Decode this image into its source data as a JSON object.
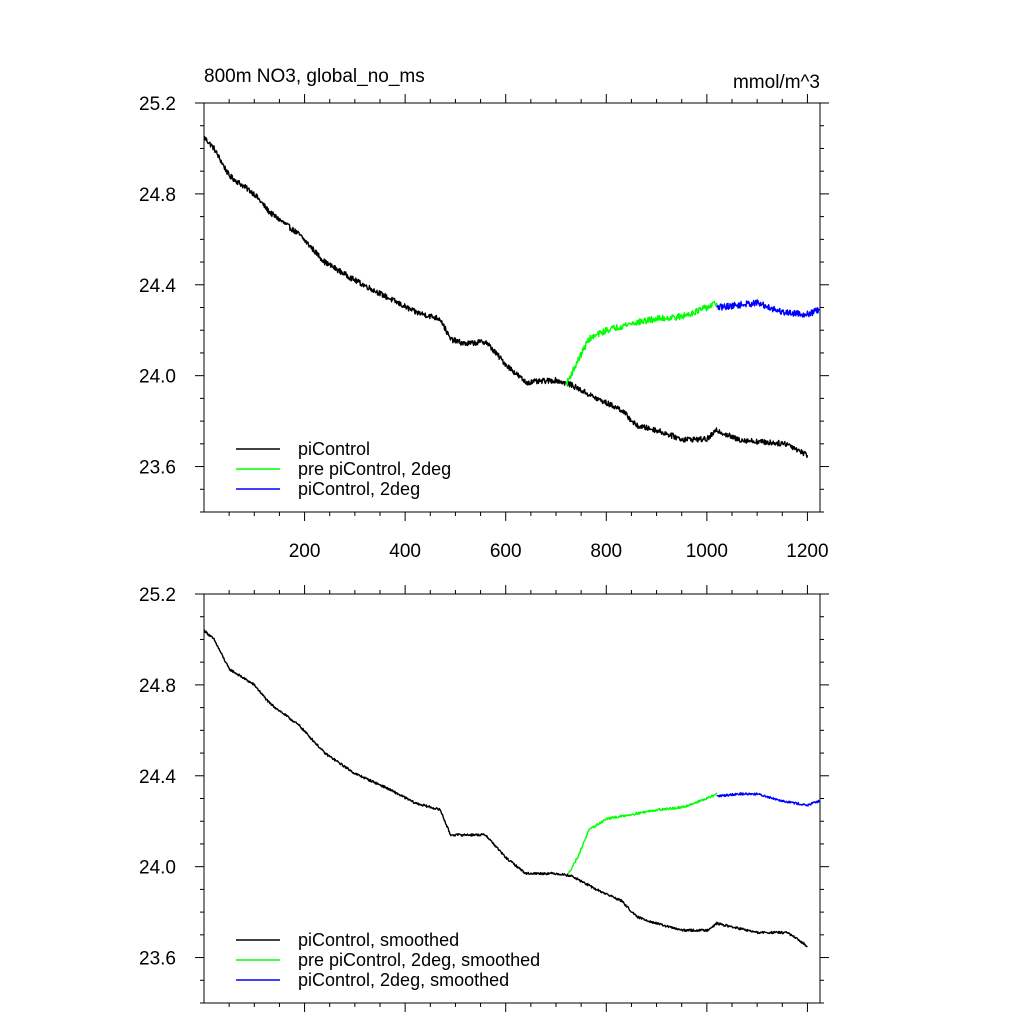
{
  "header": {
    "title": "800m NO3, global_no_ms",
    "units": "mmol/m^3"
  },
  "chart_data": [
    {
      "type": "line",
      "panel": "top",
      "title": "800m NO3, global_no_ms",
      "units_label": "mmol/m^3",
      "xlabel": "",
      "ylabel": "",
      "xlim": [
        0,
        1225
      ],
      "ylim": [
        23.4,
        25.2
      ],
      "x_ticks": [
        200,
        400,
        600,
        800,
        1000,
        1200
      ],
      "x_tick_labels": [
        "200",
        "400",
        "600",
        "800",
        "1000",
        "1200"
      ],
      "y_ticks": [
        23.6,
        24.0,
        24.4,
        24.8,
        25.2
      ],
      "y_tick_labels": [
        "23.6",
        "24.0",
        "24.4",
        "24.8",
        "25.2"
      ],
      "grid": false,
      "legend_position": "bottom-left",
      "series": [
        {
          "name": "piControl",
          "color": "#000000",
          "noise": 0.012,
          "points": [
            [
              0,
              25.05
            ],
            [
              20,
              25.0
            ],
            [
              50,
              24.88
            ],
            [
              100,
              24.8
            ],
            [
              130,
              24.72
            ],
            [
              190,
              24.62
            ],
            [
              240,
              24.5
            ],
            [
              300,
              24.42
            ],
            [
              360,
              24.35
            ],
            [
              420,
              24.28
            ],
            [
              470,
              24.25
            ],
            [
              490,
              24.16
            ],
            [
              520,
              24.14
            ],
            [
              560,
              24.15
            ],
            [
              600,
              24.05
            ],
            [
              640,
              23.97
            ],
            [
              700,
              23.98
            ],
            [
              730,
              23.96
            ],
            [
              780,
              23.9
            ],
            [
              830,
              23.85
            ],
            [
              860,
              23.78
            ],
            [
              900,
              23.76
            ],
            [
              950,
              23.72
            ],
            [
              1000,
              23.72
            ],
            [
              1020,
              23.76
            ],
            [
              1060,
              23.72
            ],
            [
              1100,
              23.71
            ],
            [
              1160,
              23.7
            ],
            [
              1200,
              23.65
            ]
          ]
        },
        {
          "name": "pre piControl, 2deg",
          "color": "#00ff00",
          "noise": 0.014,
          "points": [
            [
              720,
              23.96
            ],
            [
              740,
              24.05
            ],
            [
              765,
              24.16
            ],
            [
              800,
              24.2
            ],
            [
              850,
              24.23
            ],
            [
              900,
              24.25
            ],
            [
              950,
              24.26
            ],
            [
              1000,
              24.3
            ],
            [
              1020,
              24.32
            ]
          ]
        },
        {
          "name": "piControl, 2deg",
          "color": "#0000ff",
          "noise": 0.014,
          "points": [
            [
              1020,
              24.3
            ],
            [
              1060,
              24.31
            ],
            [
              1100,
              24.32
            ],
            [
              1150,
              24.28
            ],
            [
              1200,
              24.27
            ],
            [
              1225,
              24.29
            ]
          ]
        }
      ]
    },
    {
      "type": "line",
      "panel": "bottom",
      "title": "",
      "xlabel": "",
      "ylabel": "",
      "xlim": [
        0,
        1225
      ],
      "ylim": [
        23.4,
        25.2
      ],
      "x_ticks": [
        200,
        400,
        600,
        800,
        1000,
        1200
      ],
      "y_ticks": [
        23.6,
        24.0,
        24.4,
        24.8,
        25.2
      ],
      "y_tick_labels": [
        "23.6",
        "24.0",
        "24.4",
        "24.8",
        "25.2"
      ],
      "grid": false,
      "legend_position": "bottom-left",
      "series": [
        {
          "name": "piControl, smoothed",
          "color": "#000000",
          "noise": 0.005,
          "points": [
            [
              0,
              25.04
            ],
            [
              20,
              25.0
            ],
            [
              50,
              24.87
            ],
            [
              100,
              24.8
            ],
            [
              130,
              24.72
            ],
            [
              190,
              24.62
            ],
            [
              240,
              24.5
            ],
            [
              300,
              24.41
            ],
            [
              360,
              24.35
            ],
            [
              420,
              24.28
            ],
            [
              470,
              24.25
            ],
            [
              490,
              24.14
            ],
            [
              520,
              24.14
            ],
            [
              560,
              24.14
            ],
            [
              600,
              24.04
            ],
            [
              640,
              23.97
            ],
            [
              700,
              23.97
            ],
            [
              730,
              23.96
            ],
            [
              780,
              23.9
            ],
            [
              830,
              23.85
            ],
            [
              860,
              23.78
            ],
            [
              900,
              23.75
            ],
            [
              950,
              23.72
            ],
            [
              1000,
              23.72
            ],
            [
              1020,
              23.75
            ],
            [
              1060,
              23.73
            ],
            [
              1100,
              23.71
            ],
            [
              1160,
              23.71
            ],
            [
              1200,
              23.65
            ]
          ]
        },
        {
          "name": "pre piControl, 2deg, smoothed",
          "color": "#00ff00",
          "noise": 0.005,
          "points": [
            [
              725,
              23.97
            ],
            [
              745,
              24.05
            ],
            [
              765,
              24.16
            ],
            [
              800,
              24.21
            ],
            [
              850,
              24.23
            ],
            [
              900,
              24.25
            ],
            [
              950,
              24.26
            ],
            [
              1000,
              24.3
            ],
            [
              1020,
              24.32
            ]
          ]
        },
        {
          "name": "piControl, 2deg, smoothed",
          "color": "#0000ff",
          "noise": 0.005,
          "points": [
            [
              1020,
              24.31
            ],
            [
              1060,
              24.32
            ],
            [
              1100,
              24.32
            ],
            [
              1150,
              24.29
            ],
            [
              1200,
              24.27
            ],
            [
              1225,
              24.29
            ]
          ]
        }
      ]
    }
  ]
}
